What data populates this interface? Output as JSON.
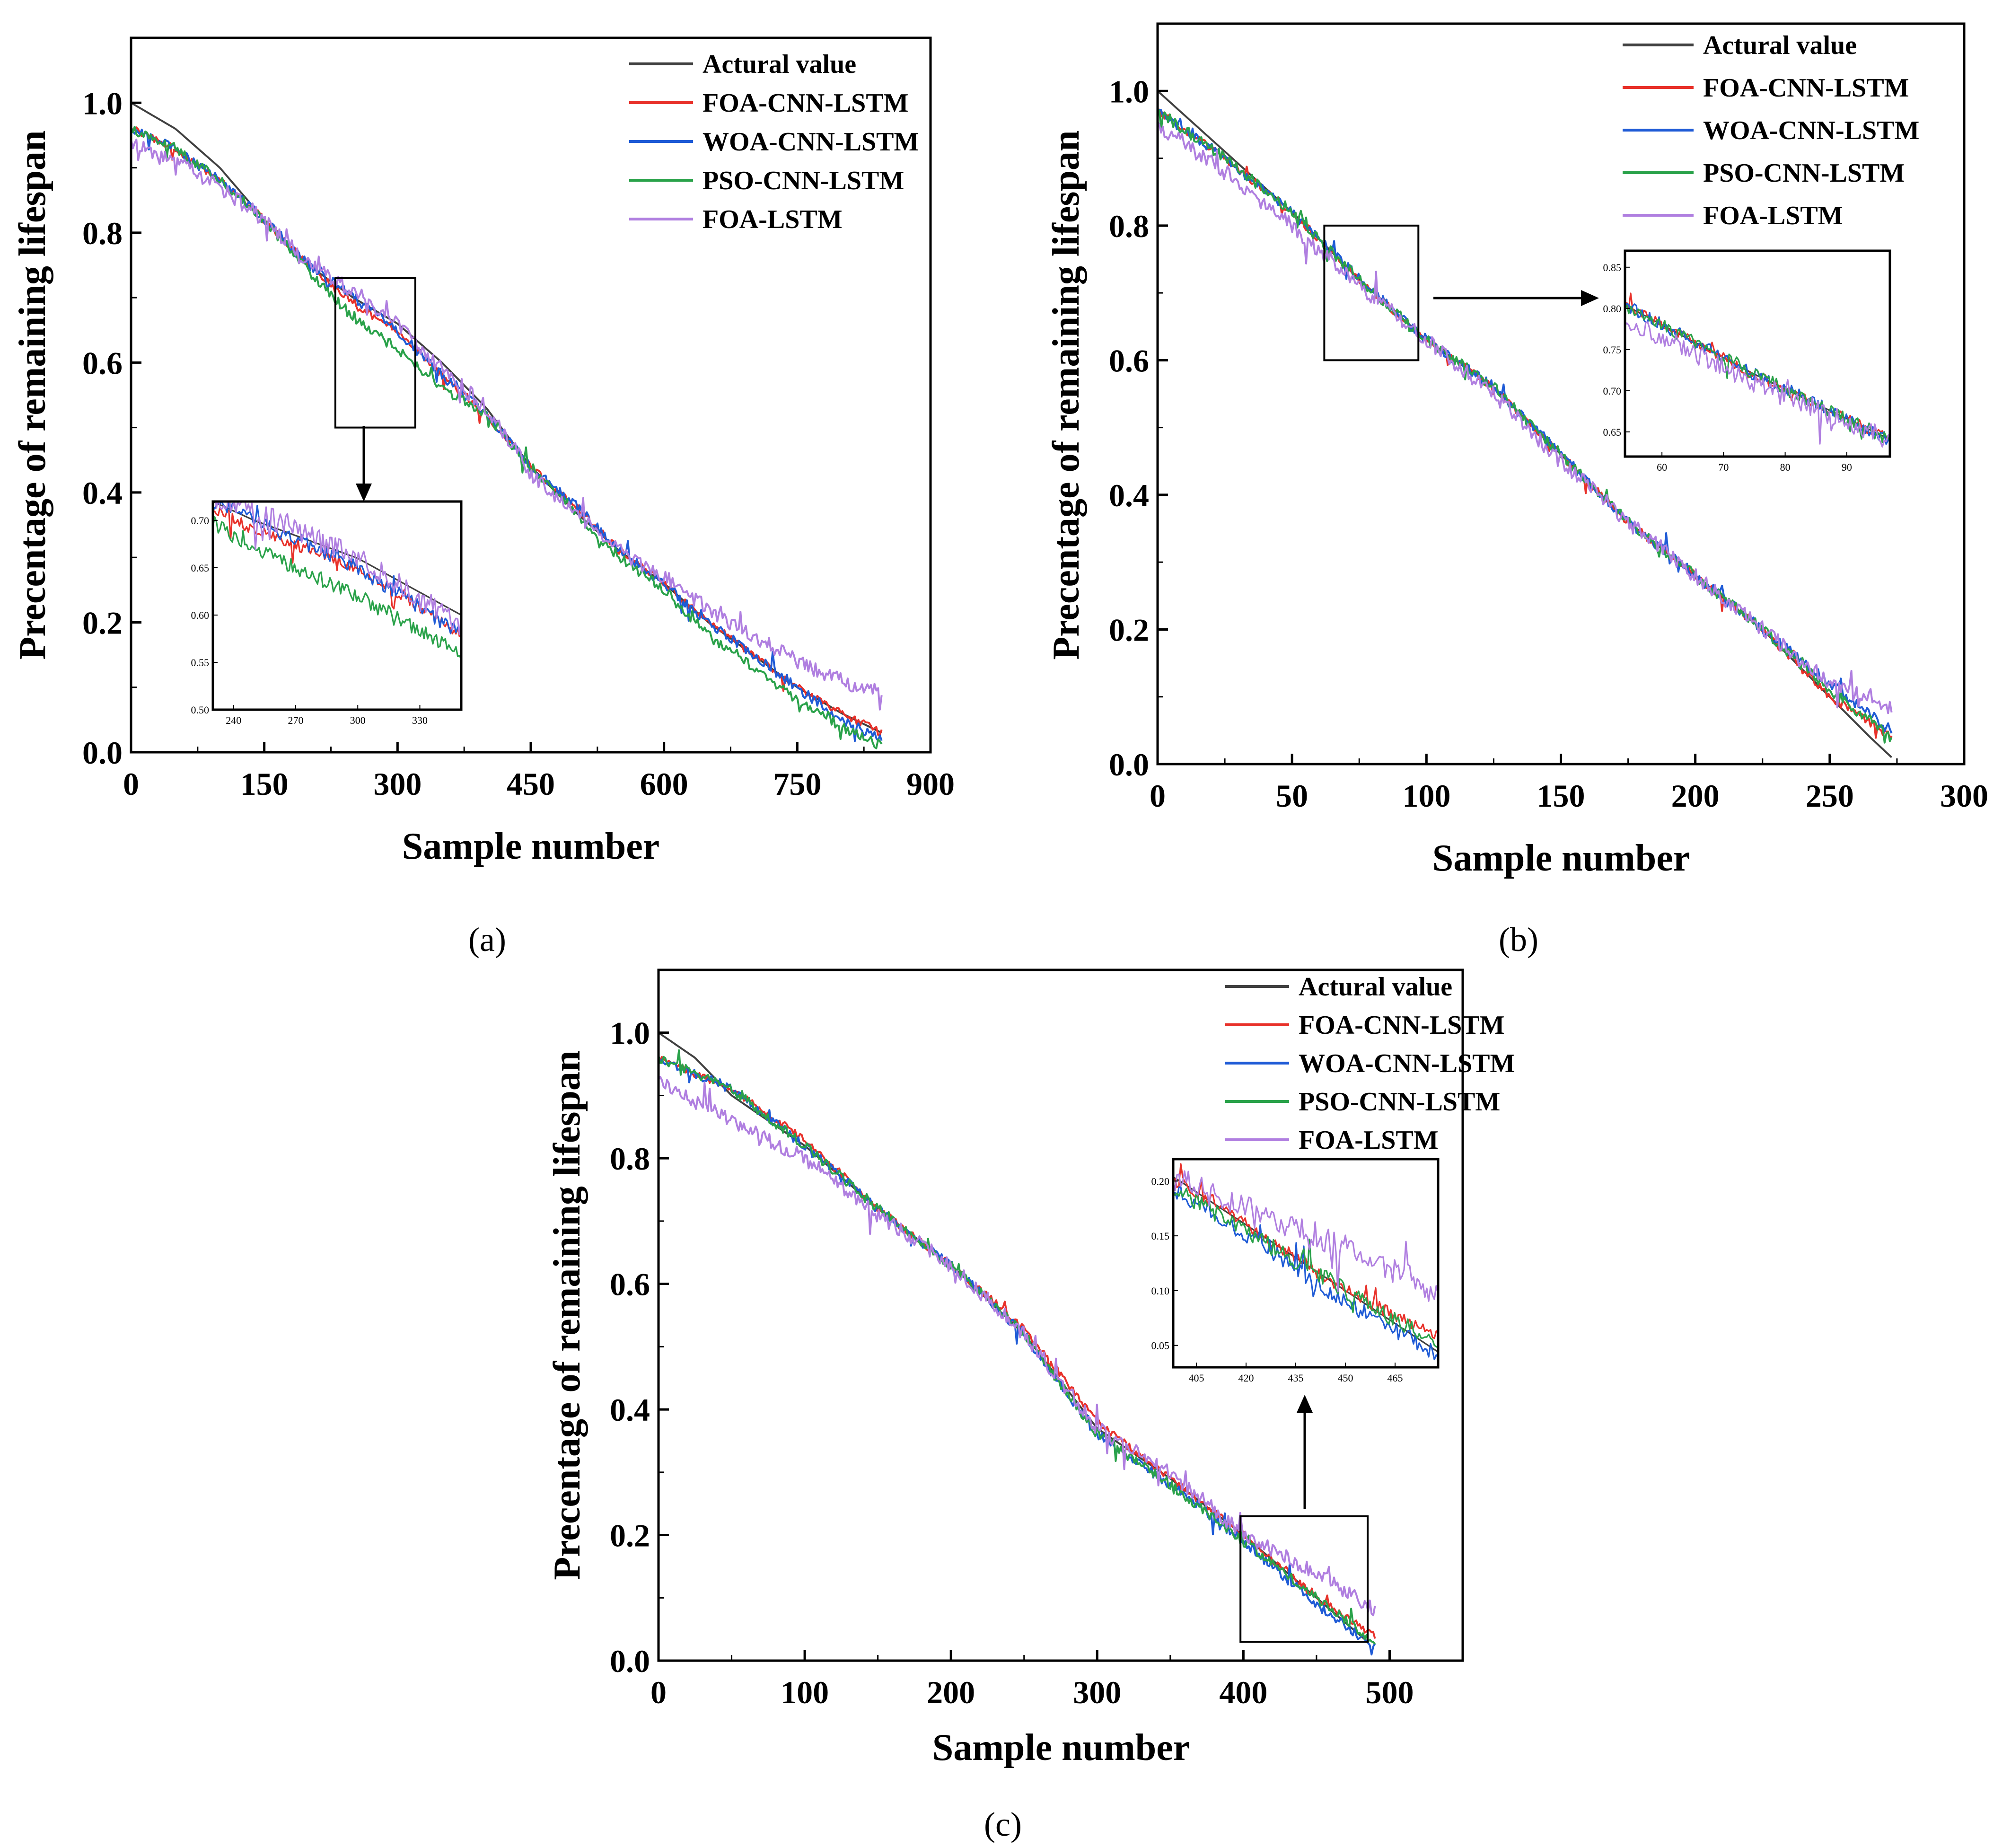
{
  "figure": {
    "panels": [
      {
        "id": "a",
        "caption": "(a)"
      },
      {
        "id": "b",
        "caption": "(b)"
      },
      {
        "id": "c",
        "caption": "(c)"
      }
    ]
  },
  "chart_data": [
    {
      "panel": "a",
      "type": "line",
      "title": "",
      "xlabel": "Sample number",
      "ylabel": "Precentage of remaining lifespan",
      "xlim": [
        0,
        900
      ],
      "ylim": [
        0,
        1.1
      ],
      "xticks": [
        0,
        150,
        300,
        450,
        600,
        750,
        900
      ],
      "yticks": [
        0.0,
        0.2,
        0.4,
        0.6,
        0.8,
        1.0
      ],
      "legend_position": "top-right",
      "series": [
        {
          "name": "Actural value",
          "color": "#404040",
          "points": [
            [
              0,
              1.0
            ],
            [
              50,
              0.96
            ],
            [
              100,
              0.9
            ],
            [
              150,
              0.82
            ],
            [
              200,
              0.75
            ],
            [
              250,
              0.7
            ],
            [
              300,
              0.66
            ],
            [
              350,
              0.6
            ],
            [
              400,
              0.53
            ],
            [
              450,
              0.44
            ],
            [
              500,
              0.37
            ],
            [
              550,
              0.31
            ],
            [
              600,
              0.26
            ],
            [
              650,
              0.2
            ],
            [
              700,
              0.15
            ],
            [
              750,
              0.1
            ],
            [
              800,
              0.06
            ],
            [
              845,
              0.03
            ]
          ]
        },
        {
          "name": "FOA-CNN-LSTM",
          "color": "#e8312a",
          "points": [
            [
              0,
              0.96
            ],
            [
              50,
              0.93
            ],
            [
              100,
              0.88
            ],
            [
              150,
              0.82
            ],
            [
              200,
              0.75
            ],
            [
              250,
              0.69
            ],
            [
              300,
              0.65
            ],
            [
              350,
              0.58
            ],
            [
              400,
              0.52
            ],
            [
              450,
              0.44
            ],
            [
              500,
              0.38
            ],
            [
              550,
              0.31
            ],
            [
              600,
              0.26
            ],
            [
              650,
              0.2
            ],
            [
              700,
              0.15
            ],
            [
              750,
              0.1
            ],
            [
              800,
              0.06
            ],
            [
              845,
              0.03
            ]
          ]
        },
        {
          "name": "WOA-CNN-LSTM",
          "color": "#1f5bd6",
          "points": [
            [
              0,
              0.96
            ],
            [
              50,
              0.93
            ],
            [
              100,
              0.88
            ],
            [
              150,
              0.82
            ],
            [
              200,
              0.75
            ],
            [
              250,
              0.7
            ],
            [
              300,
              0.65
            ],
            [
              350,
              0.58
            ],
            [
              400,
              0.52
            ],
            [
              450,
              0.44
            ],
            [
              500,
              0.38
            ],
            [
              550,
              0.31
            ],
            [
              600,
              0.26
            ],
            [
              650,
              0.2
            ],
            [
              700,
              0.15
            ],
            [
              750,
              0.1
            ],
            [
              800,
              0.05
            ],
            [
              845,
              0.02
            ]
          ]
        },
        {
          "name": "PSO-CNN-LSTM",
          "color": "#2aa24a",
          "points": [
            [
              0,
              0.96
            ],
            [
              50,
              0.93
            ],
            [
              100,
              0.88
            ],
            [
              150,
              0.82
            ],
            [
              200,
              0.74
            ],
            [
              250,
              0.67
            ],
            [
              300,
              0.62
            ],
            [
              350,
              0.56
            ],
            [
              400,
              0.52
            ],
            [
              450,
              0.44
            ],
            [
              500,
              0.37
            ],
            [
              550,
              0.3
            ],
            [
              600,
              0.25
            ],
            [
              650,
              0.18
            ],
            [
              700,
              0.13
            ],
            [
              750,
              0.08
            ],
            [
              800,
              0.04
            ],
            [
              845,
              0.01
            ]
          ]
        },
        {
          "name": "FOA-LSTM",
          "color": "#b07fe0",
          "points": [
            [
              0,
              0.94
            ],
            [
              50,
              0.91
            ],
            [
              100,
              0.87
            ],
            [
              150,
              0.82
            ],
            [
              200,
              0.75
            ],
            [
              250,
              0.71
            ],
            [
              300,
              0.66
            ],
            [
              350,
              0.59
            ],
            [
              400,
              0.53
            ],
            [
              450,
              0.43
            ],
            [
              500,
              0.37
            ],
            [
              550,
              0.31
            ],
            [
              600,
              0.27
            ],
            [
              650,
              0.22
            ],
            [
              700,
              0.18
            ],
            [
              750,
              0.14
            ],
            [
              800,
              0.11
            ],
            [
              845,
              0.09
            ]
          ]
        }
      ],
      "zoom_region": {
        "x": [
          230,
          320
        ],
        "y": [
          0.5,
          0.73
        ]
      },
      "inset": {
        "xlim": [
          230,
          350
        ],
        "ylim": [
          0.5,
          0.72
        ],
        "xticks": [
          240,
          270,
          300,
          330
        ],
        "yticks": [
          0.5,
          0.55,
          0.6,
          0.65,
          0.7
        ]
      }
    },
    {
      "panel": "b",
      "type": "line",
      "title": "",
      "xlabel": "Sample number",
      "ylabel": "Precentage of remaining lifespan",
      "xlim": [
        0,
        300
      ],
      "ylim": [
        0,
        1.1
      ],
      "xticks": [
        0,
        50,
        100,
        150,
        200,
        250,
        300
      ],
      "yticks": [
        0.0,
        0.2,
        0.4,
        0.6,
        0.8,
        1.0
      ],
      "legend_position": "top-right",
      "series": [
        {
          "name": "Actural value",
          "color": "#404040",
          "points": [
            [
              0,
              1.0
            ],
            [
              25,
              0.91
            ],
            [
              50,
              0.82
            ],
            [
              75,
              0.72
            ],
            [
              100,
              0.63
            ],
            [
              125,
              0.56
            ],
            [
              150,
              0.46
            ],
            [
              175,
              0.36
            ],
            [
              200,
              0.28
            ],
            [
              225,
              0.2
            ],
            [
              250,
              0.1
            ],
            [
              265,
              0.04
            ],
            [
              273,
              0.01
            ]
          ]
        },
        {
          "name": "FOA-CNN-LSTM",
          "color": "#e8312a",
          "points": [
            [
              0,
              0.97
            ],
            [
              25,
              0.9
            ],
            [
              50,
              0.82
            ],
            [
              75,
              0.72
            ],
            [
              100,
              0.63
            ],
            [
              125,
              0.56
            ],
            [
              150,
              0.46
            ],
            [
              175,
              0.36
            ],
            [
              200,
              0.28
            ],
            [
              225,
              0.2
            ],
            [
              250,
              0.1
            ],
            [
              273,
              0.04
            ]
          ]
        },
        {
          "name": "WOA-CNN-LSTM",
          "color": "#1f5bd6",
          "points": [
            [
              0,
              0.97
            ],
            [
              25,
              0.9
            ],
            [
              50,
              0.82
            ],
            [
              75,
              0.72
            ],
            [
              100,
              0.63
            ],
            [
              125,
              0.56
            ],
            [
              150,
              0.46
            ],
            [
              175,
              0.36
            ],
            [
              200,
              0.28
            ],
            [
              225,
              0.2
            ],
            [
              250,
              0.12
            ],
            [
              273,
              0.05
            ]
          ]
        },
        {
          "name": "PSO-CNN-LSTM",
          "color": "#2aa24a",
          "points": [
            [
              0,
              0.97
            ],
            [
              25,
              0.9
            ],
            [
              50,
              0.82
            ],
            [
              75,
              0.72
            ],
            [
              100,
              0.63
            ],
            [
              125,
              0.56
            ],
            [
              150,
              0.46
            ],
            [
              175,
              0.36
            ],
            [
              200,
              0.28
            ],
            [
              225,
              0.2
            ],
            [
              250,
              0.11
            ],
            [
              273,
              0.04
            ]
          ]
        },
        {
          "name": "FOA-LSTM",
          "color": "#b07fe0",
          "points": [
            [
              0,
              0.95
            ],
            [
              25,
              0.88
            ],
            [
              50,
              0.8
            ],
            [
              75,
              0.71
            ],
            [
              100,
              0.63
            ],
            [
              125,
              0.55
            ],
            [
              150,
              0.45
            ],
            [
              175,
              0.36
            ],
            [
              200,
              0.28
            ],
            [
              225,
              0.2
            ],
            [
              250,
              0.12
            ],
            [
              273,
              0.08
            ]
          ]
        }
      ],
      "zoom_region": {
        "x": [
          62,
          97
        ],
        "y": [
          0.6,
          0.8
        ]
      },
      "inset": {
        "xlim": [
          54,
          97
        ],
        "ylim": [
          0.62,
          0.87
        ],
        "xticks": [
          60,
          70,
          80,
          90
        ],
        "yticks": [
          0.65,
          0.7,
          0.75,
          0.8,
          0.85
        ]
      }
    },
    {
      "panel": "c",
      "type": "line",
      "title": "",
      "xlabel": "Sample number",
      "ylabel": "Precentage of remaining lifespan",
      "xlim": [
        0,
        550
      ],
      "ylim": [
        0,
        1.1
      ],
      "xticks": [
        0,
        100,
        200,
        300,
        400,
        500
      ],
      "yticks": [
        0.0,
        0.2,
        0.4,
        0.6,
        0.8,
        1.0
      ],
      "legend_position": "top-right",
      "series": [
        {
          "name": "Actural value",
          "color": "#404040",
          "points": [
            [
              0,
              1.0
            ],
            [
              25,
              0.96
            ],
            [
              50,
              0.9
            ],
            [
              100,
              0.82
            ],
            [
              150,
              0.72
            ],
            [
              200,
              0.63
            ],
            [
              250,
              0.52
            ],
            [
              300,
              0.37
            ],
            [
              350,
              0.29
            ],
            [
              400,
              0.2
            ],
            [
              450,
              0.1
            ],
            [
              485,
              0.03
            ]
          ]
        },
        {
          "name": "FOA-CNN-LSTM",
          "color": "#e8312a",
          "points": [
            [
              0,
              0.96
            ],
            [
              50,
              0.91
            ],
            [
              100,
              0.83
            ],
            [
              150,
              0.72
            ],
            [
              200,
              0.63
            ],
            [
              250,
              0.53
            ],
            [
              300,
              0.38
            ],
            [
              350,
              0.29
            ],
            [
              400,
              0.2
            ],
            [
              450,
              0.1
            ],
            [
              490,
              0.04
            ]
          ]
        },
        {
          "name": "WOA-CNN-LSTM",
          "color": "#1f5bd6",
          "points": [
            [
              0,
              0.96
            ],
            [
              50,
              0.91
            ],
            [
              100,
              0.82
            ],
            [
              150,
              0.72
            ],
            [
              200,
              0.63
            ],
            [
              250,
              0.52
            ],
            [
              300,
              0.36
            ],
            [
              350,
              0.28
            ],
            [
              400,
              0.19
            ],
            [
              450,
              0.09
            ],
            [
              490,
              0.02
            ]
          ]
        },
        {
          "name": "PSO-CNN-LSTM",
          "color": "#2aa24a",
          "points": [
            [
              0,
              0.96
            ],
            [
              50,
              0.91
            ],
            [
              100,
              0.82
            ],
            [
              150,
              0.72
            ],
            [
              200,
              0.63
            ],
            [
              250,
              0.52
            ],
            [
              300,
              0.36
            ],
            [
              350,
              0.28
            ],
            [
              400,
              0.19
            ],
            [
              450,
              0.1
            ],
            [
              490,
              0.03
            ]
          ]
        },
        {
          "name": "FOA-LSTM",
          "color": "#b07fe0",
          "points": [
            [
              0,
              0.92
            ],
            [
              50,
              0.86
            ],
            [
              100,
              0.8
            ],
            [
              150,
              0.71
            ],
            [
              200,
              0.63
            ],
            [
              250,
              0.52
            ],
            [
              300,
              0.37
            ],
            [
              350,
              0.3
            ],
            [
              400,
              0.2
            ],
            [
              450,
              0.14
            ],
            [
              490,
              0.08
            ]
          ]
        }
      ],
      "zoom_region": {
        "x": [
          398,
          485
        ],
        "y": [
          0.03,
          0.23
        ]
      },
      "inset": {
        "xlim": [
          398,
          478
        ],
        "ylim": [
          0.03,
          0.22
        ],
        "xticks": [
          405,
          420,
          435,
          450,
          465
        ],
        "yticks": [
          0.05,
          0.1,
          0.15,
          0.2
        ]
      }
    }
  ]
}
